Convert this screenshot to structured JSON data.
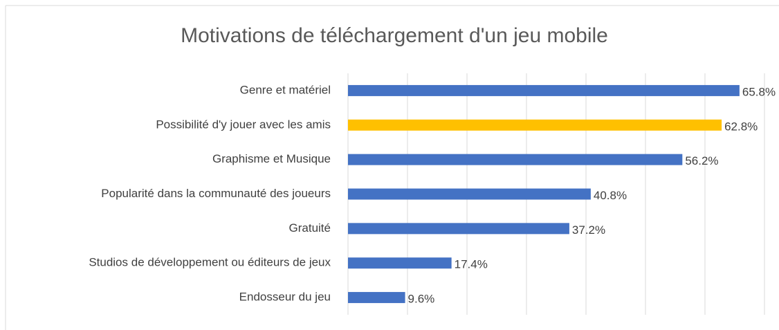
{
  "chart_data": {
    "type": "barh",
    "title": "Motivations de téléchargement d'un jeu mobile",
    "categories": [
      "Genre et matériel",
      "Possibilité d'y jouer avec les amis",
      "Graphisme et Musique",
      "Popularité dans la communauté des joueurs",
      "Gratuité",
      "Studios de développement ou éditeurs de jeux",
      "Endosseur du jeu"
    ],
    "values": [
      65.8,
      62.8,
      56.2,
      40.8,
      37.2,
      17.4,
      9.6
    ],
    "value_labels": [
      "65.8%",
      "62.8%",
      "56.2%",
      "40.8%",
      "37.2%",
      "17.4%",
      "9.6%"
    ],
    "colors": [
      "#4472c4",
      "#ffc000",
      "#4472c4",
      "#4472c4",
      "#4472c4",
      "#4472c4",
      "#4472c4"
    ],
    "xlim": [
      0,
      70
    ],
    "xticks": [
      0,
      10,
      20,
      30,
      40,
      50,
      60,
      70
    ],
    "grid": true
  }
}
